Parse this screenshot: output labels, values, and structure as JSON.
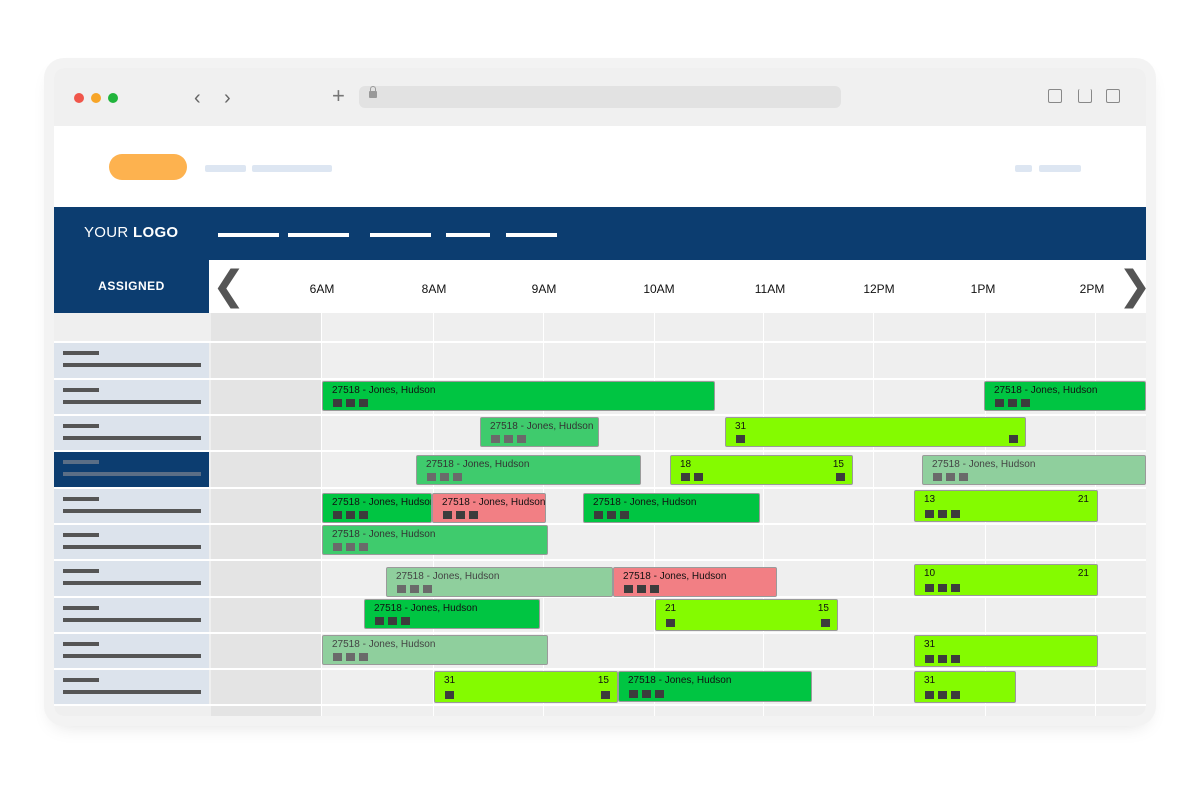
{
  "header": {
    "logo_prefix": "YOUR",
    "logo_bold": "LOGO"
  },
  "schedule": {
    "assigned_label": "ASSIGNED",
    "hours": [
      "6AM",
      "8AM",
      "9AM",
      "10AM",
      "11AM",
      "12PM",
      "1PM",
      "2PM"
    ]
  },
  "events": [
    {
      "text": "27518 - Jones, Hudson"
    },
    {
      "text": "27518 - Jones, Hudson"
    },
    {
      "text": "27518 - Jones, Hudson"
    },
    {
      "text": "31"
    },
    {
      "text": "27518 - Jones, Hudson"
    },
    {
      "text": "18",
      "right": "15"
    },
    {
      "text": "27518 - Jones, Hudson"
    },
    {
      "text": "27518 - Jones, Hudson"
    },
    {
      "text": "27518 - Jones, Hudson"
    },
    {
      "text": "27518 - Jones, Hudson"
    },
    {
      "text": "13",
      "right": "21"
    },
    {
      "text": "27518 - Jones, Hudson"
    },
    {
      "text": "27518 - Jones, Hudson"
    },
    {
      "text": "27518 - Jones, Hudson"
    },
    {
      "text": "10",
      "right": "21"
    },
    {
      "text": "27518 - Jones, Hudson"
    },
    {
      "text": "21",
      "right": "15"
    },
    {
      "text": "27518 - Jones, Hudson"
    },
    {
      "text": "31"
    },
    {
      "text": "31",
      "right": "15"
    },
    {
      "text": "27518 - Jones, Hudson"
    },
    {
      "text": "31"
    }
  ],
  "colors": {
    "navy": "#0c3d70",
    "green": "#00c542",
    "lime": "#84fb00",
    "red": "#f27f84",
    "accent": "#fdb24f"
  }
}
